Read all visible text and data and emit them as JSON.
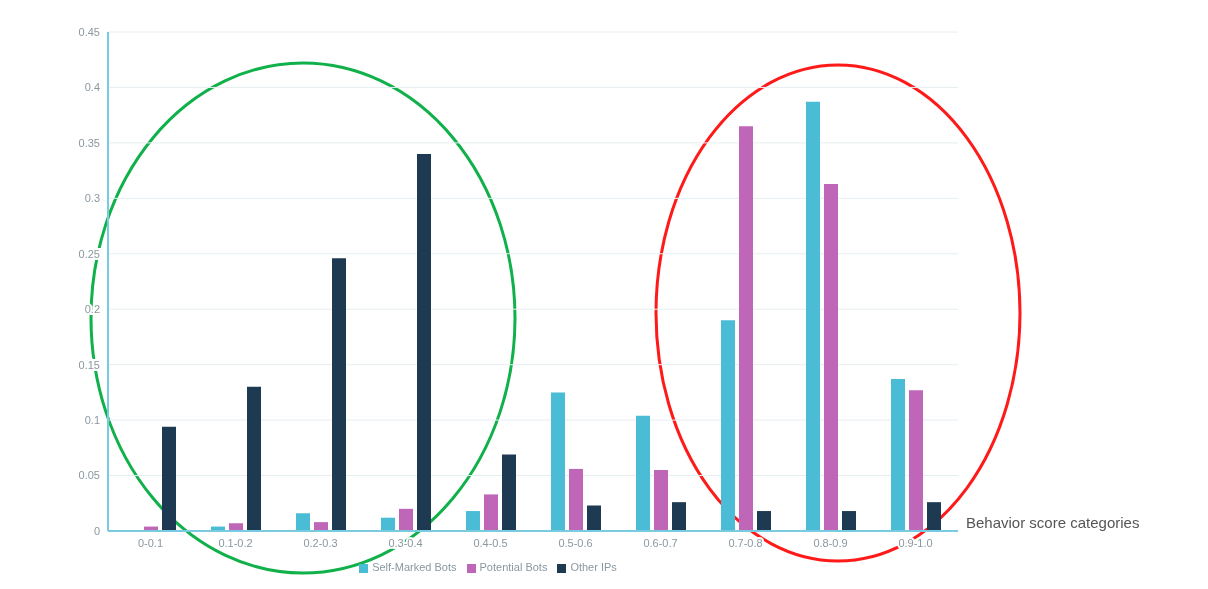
{
  "chart_data": {
    "type": "bar",
    "xlabel": "Behavior score categories",
    "categories": [
      "0-0.1",
      "0.1-0.2",
      "0.2-0.3",
      "0.3-0.4",
      "0.4-0.5",
      "0.5-0.6",
      "0.6-0.7",
      "0.7-0.8",
      "0.8-0.9",
      "0.9-1.0"
    ],
    "series": [
      {
        "name": "Self-Marked Bots",
        "color": "#4bbcd6",
        "values": [
          0,
          0.004,
          0.016,
          0.012,
          0.018,
          0.125,
          0.104,
          0.19,
          0.387,
          0.137
        ]
      },
      {
        "name": "Potential Bots",
        "color": "#c066b8",
        "values": [
          0.004,
          0.007,
          0.008,
          0.02,
          0.033,
          0.056,
          0.055,
          0.365,
          0.313,
          0.127
        ]
      },
      {
        "name": "Other IPs",
        "color": "#1e3a52",
        "values": [
          0.094,
          0.13,
          0.246,
          0.34,
          0.069,
          0.023,
          0.026,
          0.018,
          0.018,
          0.026
        ]
      }
    ],
    "ylim": [
      0,
      0.45
    ],
    "yticks": [
      0,
      0.05,
      0.1,
      0.15,
      0.2,
      0.25,
      0.3,
      0.35,
      0.4,
      0.45
    ],
    "grid": "y",
    "legend": "bottom"
  }
}
